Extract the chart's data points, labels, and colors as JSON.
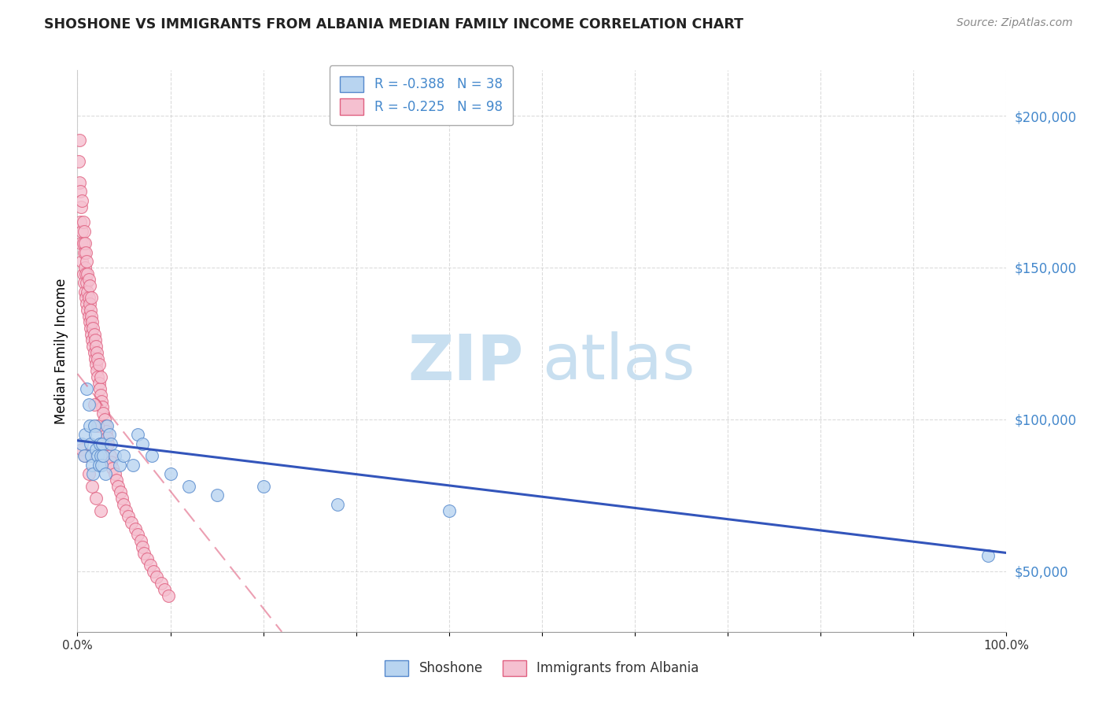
{
  "title": "SHOSHONE VS IMMIGRANTS FROM ALBANIA MEDIAN FAMILY INCOME CORRELATION CHART",
  "source_text": "Source: ZipAtlas.com",
  "ylabel": "Median Family Income",
  "xlim": [
    0.0,
    1.0
  ],
  "ylim": [
    30000,
    215000
  ],
  "yticks": [
    50000,
    100000,
    150000,
    200000
  ],
  "ytick_labels": [
    "$50,000",
    "$100,000",
    "$150,000",
    "$200,000"
  ],
  "xticks": [
    0.0,
    0.1,
    0.2,
    0.3,
    0.4,
    0.5,
    0.6,
    0.7,
    0.8,
    0.9,
    1.0
  ],
  "xtick_labels": [
    "0.0%",
    "",
    "",
    "",
    "",
    "",
    "",
    "",
    "",
    "",
    "100.0%"
  ],
  "shoshone_color": "#b8d4f0",
  "shoshone_edge_color": "#5588cc",
  "albania_color": "#f5c0d0",
  "albania_edge_color": "#e06080",
  "blue_line_color": "#3355bb",
  "pink_line_color": "#e06080",
  "watermark_zip": "ZIP",
  "watermark_atlas": "atlas",
  "watermark_color_zip": "#c8dff0",
  "watermark_color_atlas": "#c8dff0",
  "background_color": "#ffffff",
  "grid_color": "#cccccc",
  "shoshone_x": [
    0.005,
    0.007,
    0.008,
    0.01,
    0.012,
    0.013,
    0.014,
    0.015,
    0.016,
    0.017,
    0.018,
    0.019,
    0.02,
    0.022,
    0.023,
    0.024,
    0.025,
    0.026,
    0.027,
    0.028,
    0.03,
    0.032,
    0.034,
    0.036,
    0.04,
    0.045,
    0.05,
    0.06,
    0.065,
    0.07,
    0.08,
    0.1,
    0.12,
    0.15,
    0.2,
    0.28,
    0.4,
    0.98
  ],
  "shoshone_y": [
    92000,
    88000,
    95000,
    110000,
    105000,
    98000,
    92000,
    88000,
    85000,
    82000,
    98000,
    95000,
    90000,
    88000,
    85000,
    92000,
    88000,
    85000,
    92000,
    88000,
    82000,
    98000,
    95000,
    92000,
    88000,
    85000,
    88000,
    85000,
    95000,
    92000,
    88000,
    82000,
    78000,
    75000,
    78000,
    72000,
    70000,
    55000
  ],
  "albania_x": [
    0.001,
    0.002,
    0.002,
    0.003,
    0.003,
    0.004,
    0.004,
    0.005,
    0.005,
    0.005,
    0.006,
    0.006,
    0.006,
    0.007,
    0.007,
    0.007,
    0.008,
    0.008,
    0.008,
    0.009,
    0.009,
    0.009,
    0.01,
    0.01,
    0.01,
    0.011,
    0.011,
    0.011,
    0.012,
    0.012,
    0.012,
    0.013,
    0.013,
    0.013,
    0.014,
    0.014,
    0.015,
    0.015,
    0.015,
    0.016,
    0.016,
    0.017,
    0.017,
    0.018,
    0.018,
    0.019,
    0.019,
    0.02,
    0.02,
    0.021,
    0.021,
    0.022,
    0.022,
    0.023,
    0.023,
    0.024,
    0.025,
    0.025,
    0.026,
    0.027,
    0.028,
    0.029,
    0.03,
    0.031,
    0.032,
    0.033,
    0.035,
    0.036,
    0.038,
    0.04,
    0.042,
    0.044,
    0.046,
    0.048,
    0.05,
    0.052,
    0.055,
    0.058,
    0.062,
    0.065,
    0.068,
    0.07,
    0.072,
    0.075,
    0.078,
    0.082,
    0.085,
    0.09,
    0.094,
    0.098,
    0.005,
    0.008,
    0.012,
    0.016,
    0.02,
    0.025,
    0.018,
    0.022
  ],
  "albania_y": [
    185000,
    178000,
    192000,
    165000,
    175000,
    158000,
    170000,
    152000,
    162000,
    172000,
    148000,
    158000,
    165000,
    145000,
    155000,
    162000,
    142000,
    150000,
    158000,
    140000,
    148000,
    155000,
    138000,
    145000,
    152000,
    136000,
    142000,
    148000,
    134000,
    140000,
    146000,
    132000,
    138000,
    144000,
    130000,
    136000,
    128000,
    134000,
    140000,
    126000,
    132000,
    124000,
    130000,
    122000,
    128000,
    120000,
    126000,
    118000,
    124000,
    116000,
    122000,
    114000,
    120000,
    112000,
    118000,
    110000,
    108000,
    114000,
    106000,
    104000,
    102000,
    100000,
    98000,
    96000,
    94000,
    92000,
    88000,
    86000,
    84000,
    82000,
    80000,
    78000,
    76000,
    74000,
    72000,
    70000,
    68000,
    66000,
    64000,
    62000,
    60000,
    58000,
    56000,
    54000,
    52000,
    50000,
    48000,
    46000,
    44000,
    42000,
    90000,
    88000,
    82000,
    78000,
    74000,
    70000,
    105000,
    98000
  ],
  "blue_line_x0": 0.0,
  "blue_line_y0": 93000,
  "blue_line_x1": 1.0,
  "blue_line_y1": 56000,
  "pink_line_x0": 0.0,
  "pink_line_y0": 115000,
  "pink_line_x1": 0.22,
  "pink_line_y1": 30000
}
